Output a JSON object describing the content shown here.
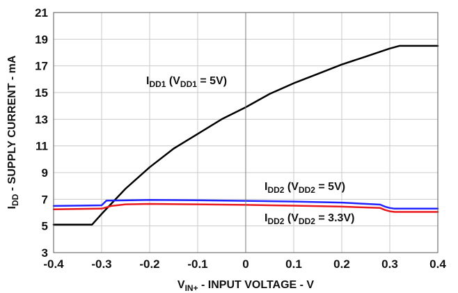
{
  "chart_data": {
    "type": "line",
    "xlabel_parts": [
      {
        "text": "V",
        "sub": false
      },
      {
        "text": "IN+",
        "sub": true
      },
      {
        "text": " - INPUT VOLTAGE - V",
        "sub": false
      }
    ],
    "ylabel_parts": [
      {
        "text": "I",
        "sub": false
      },
      {
        "text": "DD",
        "sub": true
      },
      {
        "text": " - SUPPLY CURRENT - mA",
        "sub": false
      }
    ],
    "xlim": [
      -0.4,
      0.4
    ],
    "ylim": [
      3,
      21
    ],
    "x_ticks": [
      "-0.4",
      "-0.3",
      "-0.2",
      "-0.1",
      "0",
      "0.1",
      "0.2",
      "0.3",
      "0.4"
    ],
    "y_ticks": [
      "3",
      "5",
      "7",
      "9",
      "11",
      "13",
      "15",
      "17",
      "19",
      "21"
    ],
    "grid": true,
    "series": [
      {
        "color": "#000000",
        "x": [
          -0.4,
          -0.32,
          -0.3,
          -0.25,
          -0.2,
          -0.15,
          -0.1,
          -0.05,
          0.0,
          0.05,
          0.1,
          0.15,
          0.2,
          0.25,
          0.3,
          0.32,
          0.4
        ],
        "y": [
          5.1,
          5.1,
          5.9,
          7.8,
          9.4,
          10.8,
          11.9,
          13.0,
          13.9,
          14.9,
          15.7,
          16.4,
          17.1,
          17.7,
          18.3,
          18.5,
          18.5
        ]
      },
      {
        "color": "#1f22ff",
        "x": [
          -0.4,
          -0.3,
          -0.29,
          -0.25,
          -0.2,
          -0.1,
          0.0,
          0.1,
          0.2,
          0.28,
          0.29,
          0.3,
          0.31,
          0.4
        ],
        "y": [
          6.5,
          6.55,
          6.9,
          6.92,
          6.95,
          6.93,
          6.88,
          6.83,
          6.75,
          6.6,
          6.45,
          6.35,
          6.3,
          6.3
        ]
      },
      {
        "color": "#e8171b",
        "x": [
          -0.4,
          -0.3,
          -0.28,
          -0.25,
          -0.2,
          -0.1,
          0.0,
          0.1,
          0.2,
          0.28,
          0.29,
          0.3,
          0.31,
          0.4
        ],
        "y": [
          6.25,
          6.3,
          6.5,
          6.62,
          6.65,
          6.62,
          6.58,
          6.52,
          6.45,
          6.35,
          6.2,
          6.1,
          6.05,
          6.05
        ]
      }
    ],
    "annotations": [
      {
        "parts": [
          {
            "text": "I",
            "sub": false
          },
          {
            "text": "DD1",
            "sub": true
          },
          {
            "text": " (V",
            "sub": false
          },
          {
            "text": "DD1",
            "sub": true
          },
          {
            "text": " = 5V)",
            "sub": false
          }
        ]
      },
      {
        "parts": [
          {
            "text": "I",
            "sub": false
          },
          {
            "text": "DD2",
            "sub": true
          },
          {
            "text": " (V",
            "sub": false
          },
          {
            "text": "DD2",
            "sub": true
          },
          {
            "text": " = 5V)",
            "sub": false
          }
        ]
      },
      {
        "parts": [
          {
            "text": "I",
            "sub": false
          },
          {
            "text": "DD2",
            "sub": true
          },
          {
            "text": " (V",
            "sub": false
          },
          {
            "text": "DD2",
            "sub": true
          },
          {
            "text": " = 3.3V)",
            "sub": false
          }
        ]
      }
    ]
  }
}
